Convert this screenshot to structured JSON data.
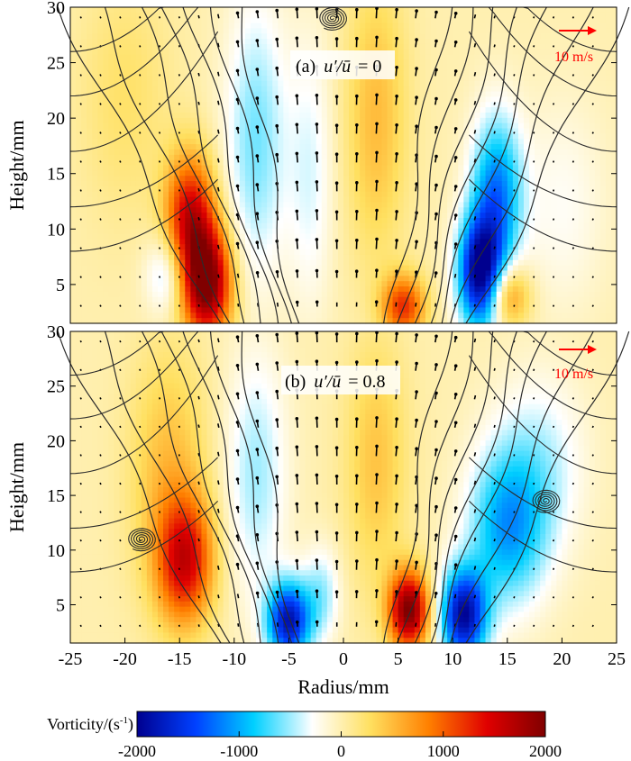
{
  "chart_data": [
    {
      "type": "heatmap",
      "panel_label": "(a) u′/ū = 0",
      "panel_label_parts": {
        "prefix": "(a)",
        "expr": "u′/ū",
        "eq": "= 0"
      },
      "xlabel": "Radius/mm",
      "ylabel": "Height/mm",
      "xlim": [
        -25,
        25
      ],
      "ylim": [
        1.5,
        30
      ],
      "y_ticks": [
        5,
        10,
        15,
        20,
        25,
        30
      ],
      "scale_arrow_label": "10 m/s",
      "vorticity_blobs": [
        {
          "r": -12.5,
          "h": 5,
          "sr": 1.6,
          "sh": 3.5,
          "v": 2000
        },
        {
          "r": -14,
          "h": 11,
          "sr": 1.6,
          "sh": 4,
          "v": 1500
        },
        {
          "r": 12.5,
          "h": 6,
          "sr": 1.4,
          "sh": 3.5,
          "v": -2000
        },
        {
          "r": 14,
          "h": 13,
          "sr": 1.6,
          "sh": 5,
          "v": -1200
        },
        {
          "r": 5.5,
          "h": 3,
          "sr": 1.4,
          "sh": 2,
          "v": 1200
        },
        {
          "r": 15,
          "h": 4,
          "sr": 1.4,
          "sh": 2,
          "v": 900
        },
        {
          "r": -8,
          "h": 18,
          "sr": 2,
          "sh": 9,
          "v": -600
        },
        {
          "r": -16,
          "h": 6,
          "sr": 1.4,
          "sh": 2.5,
          "v": -600
        },
        {
          "r": 3,
          "h": 20,
          "sr": 2,
          "sh": 9,
          "v": 500
        },
        {
          "r": -3,
          "h": 15,
          "sr": 1.5,
          "sh": 9,
          "v": -350
        },
        {
          "r": -20,
          "h": 22,
          "sr": 3,
          "sh": 8,
          "v": 250
        },
        {
          "r": 20,
          "h": 12,
          "sr": 3,
          "sh": 7,
          "v": -250
        }
      ],
      "vortex_centers": [
        {
          "r": -1,
          "h": 29
        }
      ]
    },
    {
      "type": "heatmap",
      "panel_label": "(b) u′/ū = 0.8",
      "panel_label_parts": {
        "prefix": "(b)",
        "expr": "u′/ū",
        "eq": "= 0.8"
      },
      "xlabel": "Radius/mm",
      "ylabel": "Height/mm",
      "xlim": [
        -25,
        25
      ],
      "ylim": [
        1.5,
        30
      ],
      "x_ticks": [
        -25,
        -20,
        -15,
        -10,
        -5,
        0,
        5,
        10,
        15,
        20,
        25
      ],
      "y_ticks": [
        5,
        10,
        15,
        20,
        25,
        30
      ],
      "scale_arrow_label": "10 m/s",
      "vorticity_blobs": [
        {
          "r": 6,
          "h": 4.5,
          "sr": 1.3,
          "sh": 2.5,
          "v": 2000
        },
        {
          "r": -14.5,
          "h": 9,
          "sr": 1.8,
          "sh": 4,
          "v": 1400
        },
        {
          "r": -5,
          "h": 3.5,
          "sr": 1.4,
          "sh": 2.5,
          "v": -1800
        },
        {
          "r": 11,
          "h": 4,
          "sr": 1.5,
          "sh": 3,
          "v": -1900
        },
        {
          "r": 15,
          "h": 12,
          "sr": 2.5,
          "sh": 5,
          "v": -1000
        },
        {
          "r": -16,
          "h": 17,
          "sr": 2.5,
          "sh": 8,
          "v": 500
        },
        {
          "r": -8,
          "h": 17,
          "sr": 2,
          "sh": 8,
          "v": -500
        },
        {
          "r": 3,
          "h": 18,
          "sr": 2,
          "sh": 8,
          "v": 450
        },
        {
          "r": -2,
          "h": 6,
          "sr": 1.2,
          "sh": 3,
          "v": -500
        },
        {
          "r": 18,
          "h": 18,
          "sr": 3,
          "sh": 6,
          "v": -400
        }
      ],
      "vortex_centers": [
        {
          "r": -18.5,
          "h": 11
        },
        {
          "r": 18.5,
          "h": 14.5
        }
      ]
    }
  ],
  "colorbar": {
    "label": "Vorticity/(s⁻¹)",
    "label_base": "Vorticity/(s",
    "label_sup": "-1",
    "label_close": ")",
    "range": [
      -2000,
      2000
    ],
    "ticks": [
      "-2000",
      "-1000",
      "0",
      "1000",
      "2000"
    ],
    "colors": [
      "#00008f",
      "#0040ff",
      "#00d0ff",
      "#ffffff",
      "#ffe060",
      "#ff8000",
      "#e00000",
      "#800000"
    ]
  },
  "colors": {
    "streamline": "#2b2b2b",
    "vector": "#000000",
    "scale_arrow": "#ff0000"
  }
}
